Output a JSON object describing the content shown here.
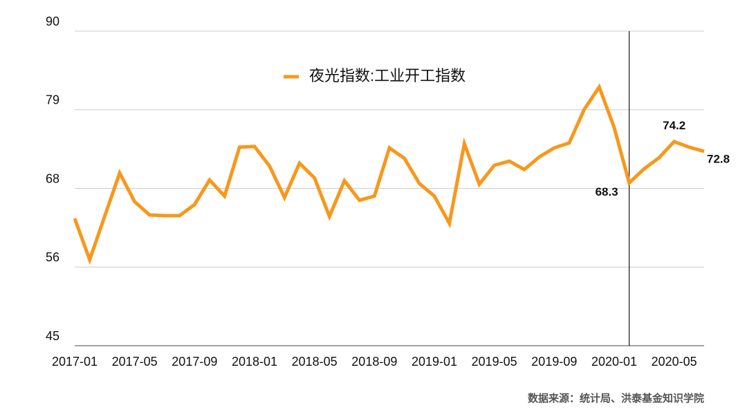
{
  "chart_data": {
    "type": "line",
    "categories": [
      "2017-01",
      null,
      null,
      null,
      "2017-05",
      null,
      null,
      null,
      "2017-09",
      null,
      null,
      null,
      "2018-01",
      null,
      null,
      null,
      "2018-05",
      null,
      null,
      null,
      "2018-09",
      null,
      null,
      null,
      "2019-01",
      null,
      null,
      null,
      "2019-05",
      null,
      null,
      null,
      "2019-09",
      null,
      null,
      null,
      "2020-01",
      null,
      null,
      null,
      "2020-05",
      null,
      null
    ],
    "series": [
      {
        "name": "夜光指数:工业开工指数",
        "color": "#f7981d",
        "values": [
          63.2,
          57.3,
          63.5,
          69.7,
          65.6,
          63.7,
          63.6,
          63.6,
          65.2,
          68.7,
          66.4,
          73.4,
          73.5,
          70.7,
          66.2,
          71.1,
          69.0,
          63.5,
          68.6,
          65.8,
          66.4,
          73.3,
          71.8,
          68.2,
          66.4,
          62.5,
          73.9,
          68.1,
          70.8,
          71.4,
          70.2,
          72.0,
          73.3,
          74.0,
          78.8,
          82.0,
          76.2,
          68.3,
          70.3,
          71.9,
          74.2,
          73.4,
          72.8
        ],
        "value_labels": [
          null,
          null,
          null,
          null,
          null,
          null,
          null,
          null,
          null,
          null,
          null,
          null,
          null,
          null,
          null,
          null,
          null,
          null,
          null,
          null,
          null,
          null,
          null,
          null,
          null,
          null,
          null,
          null,
          null,
          null,
          null,
          null,
          null,
          null,
          null,
          null,
          null,
          "68.3",
          null,
          null,
          "74.2",
          null,
          "72.8"
        ]
      }
    ],
    "ylim": [
      45,
      90
    ],
    "yticks": [
      45,
      {
        "value": 56.25,
        "label": "56"
      },
      {
        "value": 67.5,
        "label": "68"
      },
      {
        "value": 78.75,
        "label": "79"
      },
      90
    ],
    "grid": true,
    "legend": "top",
    "source": "数据来源：统计局、洪泰基金知识学院"
  }
}
